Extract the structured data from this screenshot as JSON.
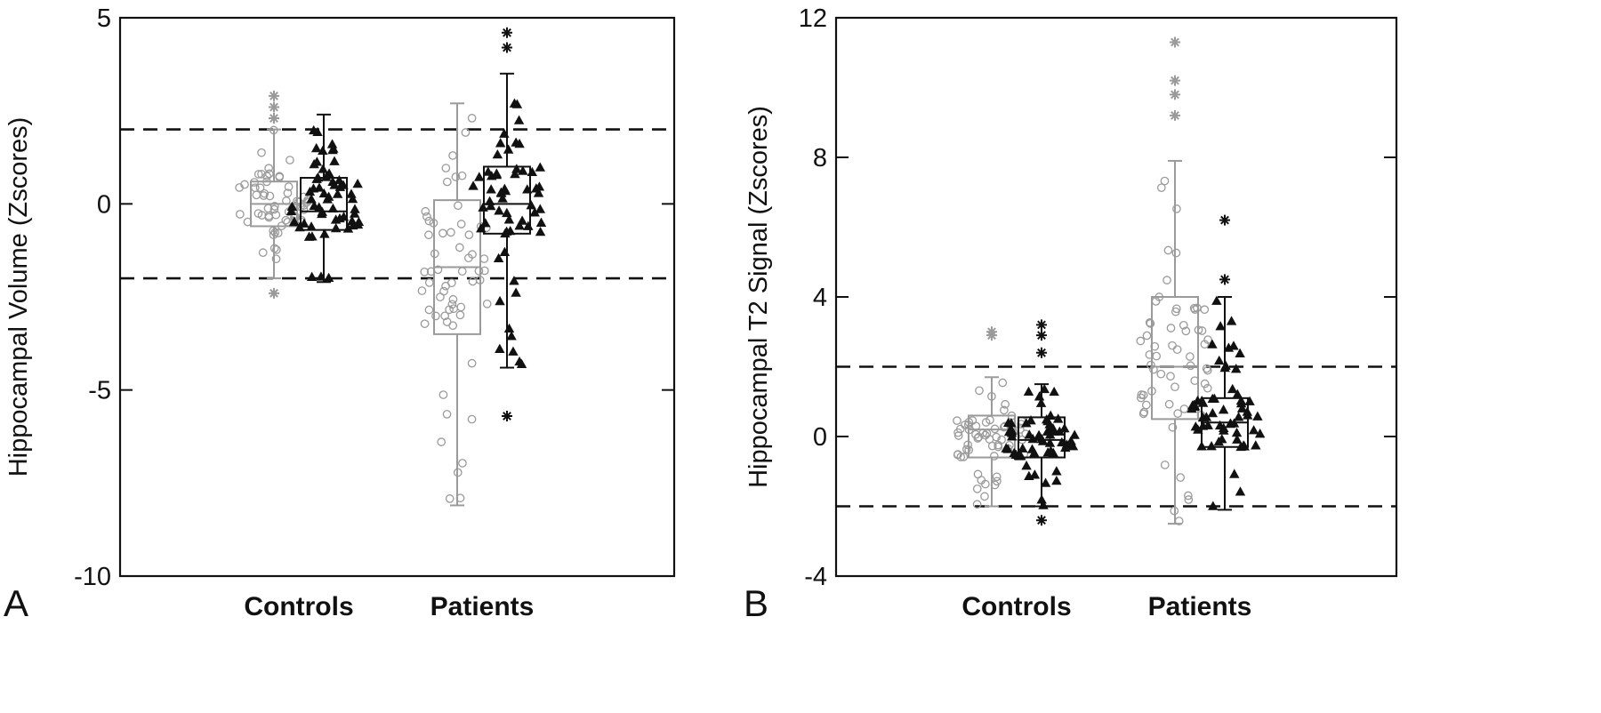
{
  "chart_data": [
    {
      "panel_label": "A",
      "type": "box",
      "ylabel": "Hippocampal Volume (Zscores)",
      "ylim": [
        -10,
        5
      ],
      "yticks": [
        -10,
        -5,
        0,
        5
      ],
      "ytick_labels": [
        "-10",
        "-5",
        "0",
        "5"
      ],
      "reference_lines": [
        2,
        -2
      ],
      "categories": [
        "Controls",
        "Patients"
      ],
      "boxes": [
        {
          "category": "Controls",
          "marker": "open-circle",
          "color": "#9a9a9a",
          "q1": -0.6,
          "median": 0.0,
          "q3": 0.6,
          "whisker_low": -2.0,
          "whisker_high": 2.0,
          "outliers": [
            2.9,
            2.6,
            2.3,
            -2.4
          ]
        },
        {
          "category": "Controls",
          "marker": "filled-triangle",
          "color": "#111111",
          "q1": -0.7,
          "median": -0.2,
          "q3": 0.7,
          "whisker_low": -2.1,
          "whisker_high": 2.4,
          "outliers": []
        },
        {
          "category": "Patients",
          "marker": "open-circle",
          "color": "#9a9a9a",
          "q1": -3.5,
          "median": -1.7,
          "q3": 0.1,
          "whisker_low": -8.1,
          "whisker_high": 2.7,
          "outliers": []
        },
        {
          "category": "Patients",
          "marker": "filled-triangle",
          "color": "#111111",
          "q1": -0.8,
          "median": 0.0,
          "q3": 1.0,
          "whisker_low": -4.4,
          "whisker_high": 3.5,
          "outliers": [
            4.6,
            4.2,
            -5.7
          ]
        }
      ],
      "grid": false
    },
    {
      "panel_label": "B",
      "type": "box",
      "ylabel": "Hippocampal T2 Signal (Zscores)",
      "ylim": [
        -4,
        12
      ],
      "yticks": [
        -4,
        0,
        4,
        8,
        12
      ],
      "ytick_labels": [
        "-4",
        "0",
        "4",
        "8",
        "12"
      ],
      "reference_lines": [
        2,
        -2
      ],
      "categories": [
        "Controls",
        "Patients"
      ],
      "boxes": [
        {
          "category": "Controls",
          "marker": "open-circle",
          "color": "#9a9a9a",
          "q1": -0.6,
          "median": 0.2,
          "q3": 0.6,
          "whisker_low": -2.0,
          "whisker_high": 1.7,
          "outliers": [
            3.0,
            2.9
          ]
        },
        {
          "category": "Controls",
          "marker": "filled-triangle",
          "color": "#111111",
          "q1": -0.6,
          "median": -0.1,
          "q3": 0.55,
          "whisker_low": -2.0,
          "whisker_high": 1.5,
          "outliers": [
            3.2,
            2.9,
            2.4,
            -2.4
          ]
        },
        {
          "category": "Patients",
          "marker": "open-circle",
          "color": "#9a9a9a",
          "q1": 0.5,
          "median": 2.0,
          "q3": 4.0,
          "whisker_low": -2.5,
          "whisker_high": 7.9,
          "outliers": [
            11.3,
            10.2,
            9.8,
            9.2
          ]
        },
        {
          "category": "Patients",
          "marker": "filled-triangle",
          "color": "#111111",
          "q1": -0.3,
          "median": 0.4,
          "q3": 1.1,
          "whisker_low": -2.1,
          "whisker_high": 4.0,
          "outliers": [
            6.2,
            4.5
          ]
        }
      ],
      "grid": false
    }
  ]
}
